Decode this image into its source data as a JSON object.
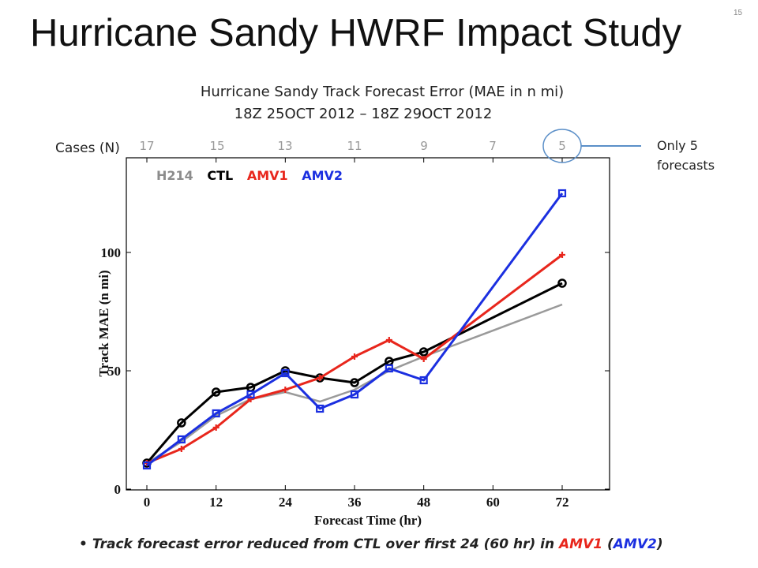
{
  "page_number": "15",
  "title": "Hurricane Sandy HWRF Impact Study",
  "chart_title_line1": "Hurricane Sandy Track Forecast Error (MAE in n mi)",
  "chart_title_line2": "18Z 25OCT 2012 – 18Z 29OCT 2012",
  "cases_label": "Cases (N)",
  "cases_counts": [
    "17",
    "15",
    "13",
    "11",
    "9",
    "7",
    "5"
  ],
  "callout_note": "Only 5 forecasts",
  "legend": [
    {
      "label": "H214",
      "color": "#8c8c8c"
    },
    {
      "label": "CTL",
      "color": "#000000"
    },
    {
      "label": "AMV1",
      "color": "#e8261c"
    },
    {
      "label": "AMV2",
      "color": "#1b2fe0"
    }
  ],
  "bullet": {
    "prefix": "Track forecast error reduced from CTL over first 24 (60 hr) in ",
    "amv1": "AMV1",
    "middle": " (",
    "amv2": "AMV2",
    "suffix": ")"
  },
  "chart_data": {
    "type": "line",
    "xlabel": "Forecast Time (hr)",
    "ylabel": "Track MAE (n mi)",
    "xlim": [
      0,
      78
    ],
    "ylim": [
      0,
      140
    ],
    "xticks": [
      0,
      12,
      24,
      36,
      48,
      60,
      72
    ],
    "yticks": [
      0,
      50,
      100
    ],
    "grid": false,
    "series": [
      {
        "name": "H214",
        "color": "#9a9a9a",
        "marker": "none",
        "x": [
          0,
          6,
          12,
          18,
          24,
          30,
          36,
          42,
          48,
          72
        ],
        "y": [
          11,
          20,
          31,
          38,
          41,
          37,
          42,
          50,
          56,
          78
        ]
      },
      {
        "name": "CTL",
        "color": "#000000",
        "marker": "circle",
        "x": [
          0,
          6,
          12,
          18,
          24,
          30,
          36,
          42,
          48,
          72
        ],
        "y": [
          11,
          28,
          41,
          43,
          50,
          47,
          45,
          54,
          58,
          87
        ]
      },
      {
        "name": "AMV1",
        "color": "#e8261c",
        "marker": "plus",
        "x": [
          0,
          6,
          12,
          18,
          24,
          30,
          36,
          42,
          48,
          72
        ],
        "y": [
          11,
          17,
          26,
          38,
          42,
          47,
          56,
          63,
          55,
          99
        ]
      },
      {
        "name": "AMV2",
        "color": "#1b2fe0",
        "marker": "square",
        "x": [
          0,
          6,
          12,
          18,
          24,
          30,
          36,
          42,
          48,
          72
        ],
        "y": [
          10,
          21,
          32,
          40,
          49,
          34,
          40,
          51,
          46,
          125
        ]
      }
    ]
  }
}
